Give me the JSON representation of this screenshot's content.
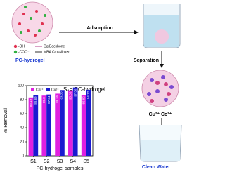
{
  "chart_data": {
    "type": "bar",
    "annotation": "S₄= PC-hydrogel",
    "y_label": "% Removal",
    "x_label": "PC-hydrogel samples",
    "categories": [
      "S1",
      "S2",
      "S3",
      "S4",
      "S5"
    ],
    "series": [
      {
        "name": "Co²⁺",
        "color": "#e020e0",
        "values": [
          83.19,
          85.8,
          88.55,
          93.33,
          86.82
        ]
      },
      {
        "name": "Cu²⁺",
        "color": "#1a1ad0",
        "values": [
          86.69,
          87.34,
          93.72,
          97.36,
          94.12
        ]
      }
    ],
    "ylim": [
      0,
      100
    ],
    "yticks": [
      0,
      20,
      40,
      60,
      80,
      100
    ]
  },
  "diagram": {
    "oh": "-OH",
    "coo": "-COO⁻",
    "backbone": "Gg Backbone",
    "crosslinker": "MBA Crosslinker",
    "hydrogel": "PC-hydrogel",
    "adsorption": "Adsorption",
    "separation": "Separation",
    "ions": "Cu²⁺  Co²⁺",
    "clean_water": "Clean Water"
  }
}
